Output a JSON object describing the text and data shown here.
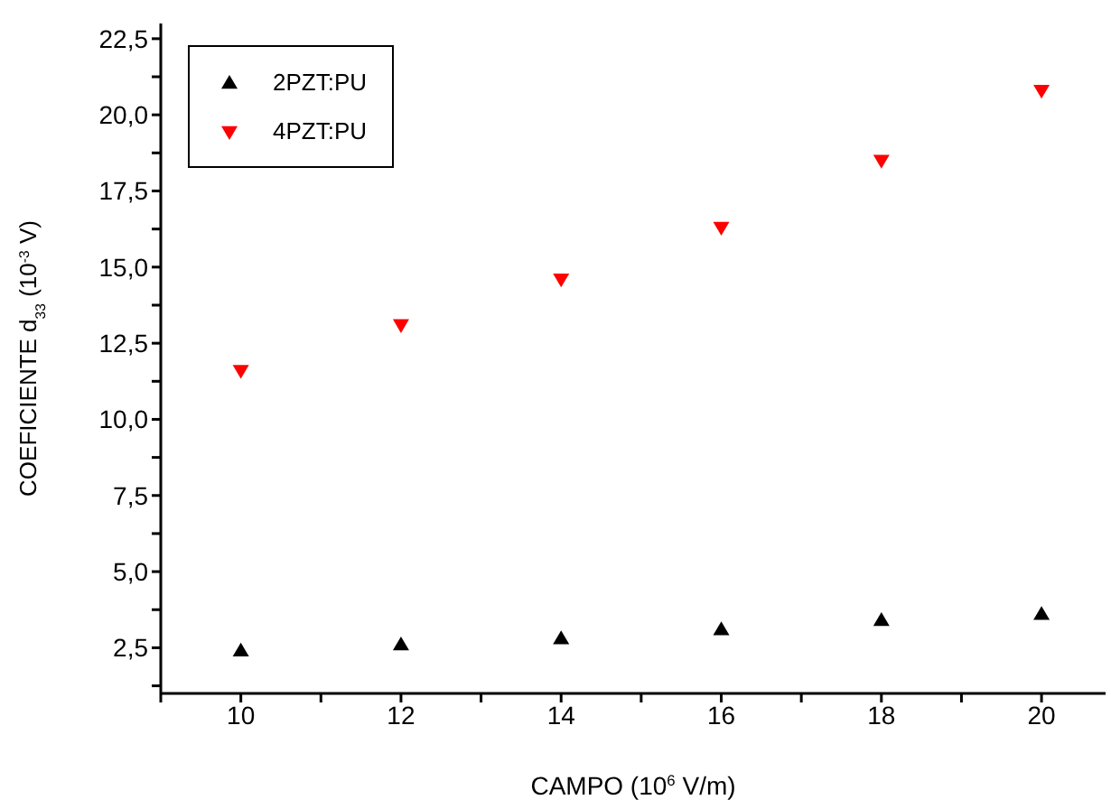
{
  "chart_data": {
    "type": "scatter",
    "xlabel": "CAMPO (10$^{6}$ V/m)",
    "ylabel": "COEFICIENTE d$_{33}$ (10$^{-3}$ V)",
    "x": [
      10,
      12,
      14,
      16,
      18,
      20
    ],
    "series": [
      {
        "name": "2PZT:PU",
        "color": "#000000",
        "marker": "triangle",
        "values": [
          2.4,
          2.6,
          2.8,
          3.1,
          3.4,
          3.6
        ]
      },
      {
        "name": "4PZT:PU",
        "color": "#ff0000",
        "marker": "triangle-down",
        "values": [
          11.6,
          13.1,
          14.6,
          16.3,
          18.5,
          20.8
        ]
      }
    ],
    "xlim": [
      9,
      20.8
    ],
    "xticks": [
      {
        "value": 9,
        "label": null
      },
      10,
      {
        "value": 11,
        "label": null
      },
      12,
      {
        "value": 13,
        "label": null
      },
      14,
      {
        "value": 15,
        "label": null
      },
      16,
      {
        "value": 17,
        "label": null
      },
      18,
      {
        "value": 19,
        "label": null
      },
      20
    ],
    "ylim": [
      1,
      23
    ],
    "yticks": [
      {
        "value": 1.25,
        "label": null
      },
      {
        "value": 2.5,
        "label": "2,5"
      },
      {
        "value": 3.75,
        "label": null
      },
      {
        "value": 5,
        "label": "5,0"
      },
      {
        "value": 6.25,
        "label": null
      },
      {
        "value": 7.5,
        "label": "7,5"
      },
      {
        "value": 8.75,
        "label": null
      },
      {
        "value": 10,
        "label": "10,0"
      },
      {
        "value": 11.25,
        "label": null
      },
      {
        "value": 12.5,
        "label": "12,5"
      },
      {
        "value": 13.75,
        "label": null
      },
      {
        "value": 15,
        "label": "15,0"
      },
      {
        "value": 16.25,
        "label": null
      },
      {
        "value": 17.5,
        "label": "17,5"
      },
      {
        "value": 18.75,
        "label": null
      },
      {
        "value": 20,
        "label": "20,0"
      },
      {
        "value": 21.25,
        "label": null
      },
      {
        "value": 22.5,
        "label": "22,5"
      }
    ],
    "grid": false,
    "legend": "top left"
  }
}
